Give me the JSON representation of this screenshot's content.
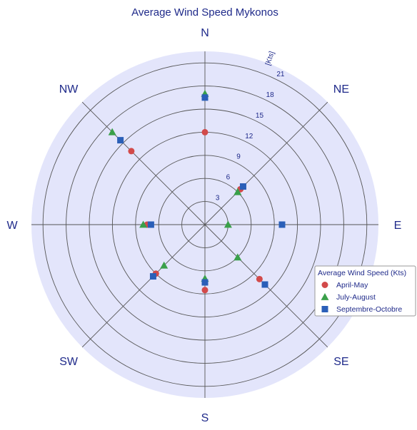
{
  "chart_data": {
    "type": "polar-scatter",
    "title": "Average Wind Speed Mykonos",
    "unit_label": "[Kts]",
    "r_max": 22.5,
    "ring_values": [
      3,
      6,
      9,
      12,
      15,
      18,
      21
    ],
    "ring_labels": [
      "3",
      "6",
      "9",
      "12",
      "15",
      "18",
      "21"
    ],
    "directions": [
      "N",
      "NE",
      "E",
      "SE",
      "S",
      "SW",
      "W",
      "NW"
    ],
    "grid": true,
    "legend_position": "right",
    "legend_title": "Average Wind Speed (Kts)",
    "colors": {
      "background": "#e3e5fb",
      "grid": "#555555",
      "text": "#1f2a8a"
    },
    "series": [
      {
        "name": "April-May",
        "marker": "circle",
        "color": "#d24a4a",
        "values": [
          12,
          6.5,
          10,
          10,
          8.5,
          9,
          7.5,
          13.5
        ]
      },
      {
        "name": "July-August",
        "marker": "triangle",
        "color": "#3aa04a",
        "values": [
          17,
          6,
          3,
          6,
          7,
          7.5,
          8,
          17
        ]
      },
      {
        "name": "Septembre-Octobre",
        "marker": "square",
        "color": "#2a5fb8",
        "values": [
          16.5,
          7,
          10,
          11,
          7.5,
          9.5,
          7,
          15.5
        ]
      }
    ]
  }
}
